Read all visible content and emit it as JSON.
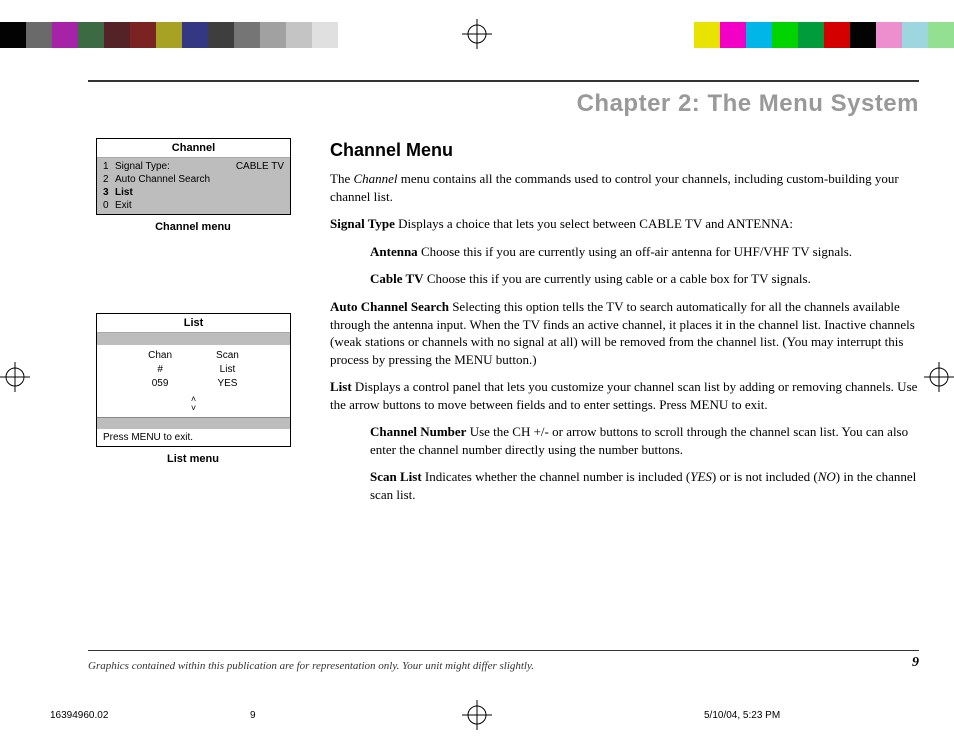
{
  "color_bars": {
    "left": [
      "#030303",
      "#6a6a6a",
      "#a623a8",
      "#3b6a43",
      "#542327",
      "#7b2222",
      "#a7a224",
      "#343781",
      "#3e3e3e",
      "#757575",
      "#a1a1a1",
      "#c4c4c4",
      "#e0e0e0"
    ],
    "right": [
      "#e8e300",
      "#f200c5",
      "#00b6e8",
      "#00d400",
      "#009c3b",
      "#d40000",
      "#030303",
      "#ed8fcf",
      "#9ed6e0",
      "#93e093"
    ]
  },
  "chapter_title": "Chapter 2: The Menu System",
  "sidebar": {
    "channel_menu": {
      "title": "Channel",
      "items": [
        {
          "n": "1",
          "label": "Signal Type:",
          "val": "CABLE TV",
          "bold": false
        },
        {
          "n": "2",
          "label": "Auto Channel Search",
          "val": "",
          "bold": false
        },
        {
          "n": "3",
          "label": "List",
          "val": "",
          "bold": true
        },
        {
          "n": "0",
          "label": "Exit",
          "val": "",
          "bold": false
        }
      ],
      "caption": "Channel menu"
    },
    "list_menu": {
      "title": "List",
      "cols": [
        {
          "h1": "Chan",
          "h2": "#",
          "v": "059"
        },
        {
          "h1": "Scan",
          "h2": "List",
          "v": "YES"
        }
      ],
      "footer": "Press MENU to exit.",
      "caption": "List menu"
    }
  },
  "body": {
    "heading": "Channel Menu",
    "intro_a": "The ",
    "intro_em": "Channel",
    "intro_b": " menu contains all the commands used to control your channels, including custom-building your channel list.",
    "signal_type_lead": "Signal Type",
    "signal_type_text": "  Displays a choice that lets you select between CABLE TV and ANTENNA:",
    "antenna_lead": "Antenna",
    "antenna_text": "  Choose this if you are currently using an off-air antenna for UHF/VHF TV signals.",
    "cable_lead": "Cable TV",
    "cable_text": "  Choose this if you are currently using cable or a cable box for TV signals.",
    "acs_lead": "Auto Channel Search",
    "acs_text": "  Selecting this option tells the TV to search automatically for all the channels available through the antenna input. When the TV finds an active channel, it places it in the channel list.  Inactive channels (weak stations or channels with no signal at all) will be removed from the channel list. (You may interrupt this process by pressing the MENU button.)",
    "list_lead": "List",
    "list_text": "  Displays a control panel that lets you customize your channel scan list by adding or removing channels. Use the arrow buttons to move between fields and to enter settings. Press MENU to exit.",
    "chnum_lead": "Channel Number",
    "chnum_text": "  Use the CH +/-  or arrow buttons to scroll through the channel scan list. You can also enter the channel number directly using the number buttons.",
    "scan_lead": "Scan List",
    "scan_text_a": "  Indicates whether the channel number is included (",
    "scan_yes": "YES",
    "scan_text_b": ") or is not included (",
    "scan_no": "NO",
    "scan_text_c": ") in the channel scan list."
  },
  "footnote": "Graphics contained within this publication are for representation only. Your unit might differ slightly.",
  "page_number": "9",
  "meta": {
    "id": "16394960.02",
    "page": "9",
    "date": "5/10/04, 5:23 PM"
  }
}
